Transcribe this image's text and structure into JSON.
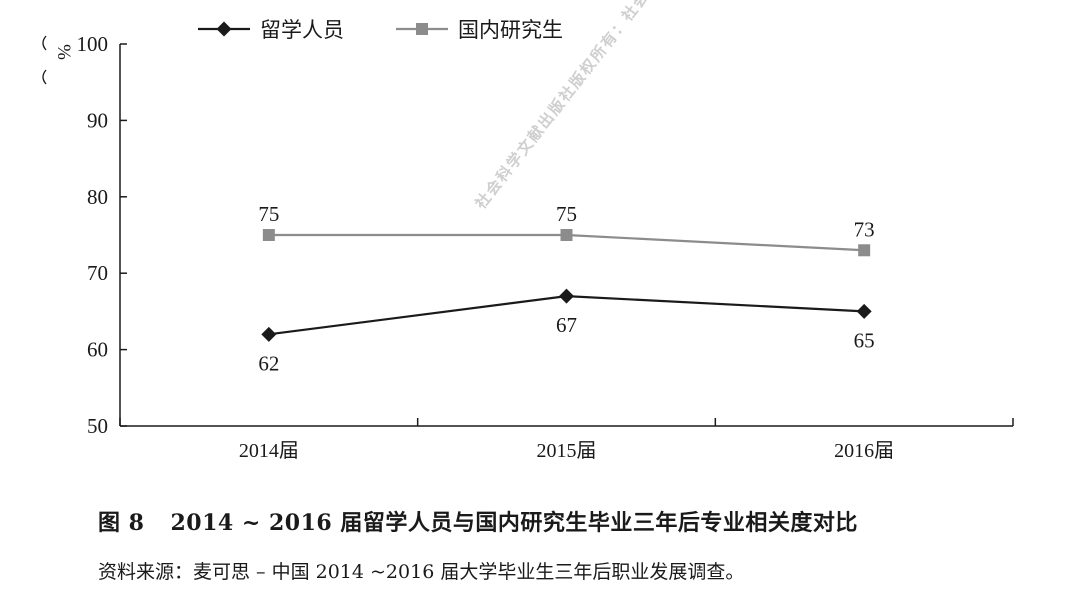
{
  "chart_data": {
    "type": "line",
    "categories": [
      "2014届",
      "2015届",
      "2016届"
    ],
    "series": [
      {
        "name": "留学人员",
        "values": [
          62,
          67,
          65
        ],
        "color": "#1a1a1a",
        "marker": "diamond"
      },
      {
        "name": "国内研究生",
        "values": [
          75,
          75,
          73
        ],
        "color": "#8c8c8c",
        "marker": "square"
      }
    ],
    "ylim": [
      50,
      100
    ],
    "yticks": [
      50,
      60,
      70,
      80,
      90,
      100
    ],
    "ylabel": "%",
    "xlabel": "",
    "grid": false,
    "legend": "top"
  },
  "caption": {
    "figure_no": "图 8",
    "title": "2014 ~ 2016 届留学人员与国内研究生毕业三年后专业相关度对比"
  },
  "source": "资料来源：麦可思 – 中国 2014 ~2016 届大学毕业生三年后职业发展调查。",
  "watermark": "社会科学文献出版社版权所有：社会科学文献出版社下载使用"
}
